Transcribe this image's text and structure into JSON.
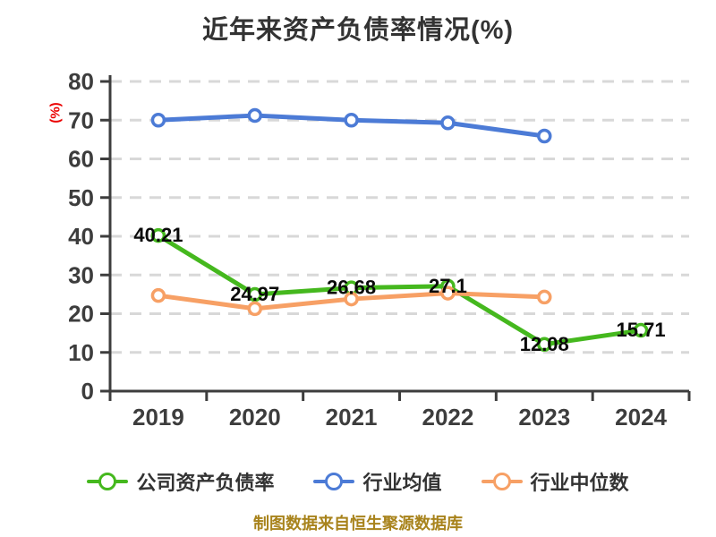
{
  "header": {
    "title": "近年来资产负债率情况(%)"
  },
  "y_axis": {
    "label": "(%)",
    "label_color": "#EA0000"
  },
  "footer": {
    "source_note": "制图数据来自恒生聚源数据库",
    "color": "#A8831C"
  },
  "chart_data": {
    "type": "line",
    "title": "近年来资产负债率情况(%)",
    "xlabel": "",
    "ylabel": "(%)",
    "categories": [
      "2019",
      "2020",
      "2021",
      "2022",
      "2023",
      "2024"
    ],
    "ylim": [
      0,
      80
    ],
    "ytick_interval": 10,
    "grid": "horizontal-dashed",
    "legend_position": "bottom",
    "marker": "circle-white-fill",
    "colors": {
      "grid": "#D8D8D8",
      "axis": "#3D3D3D",
      "data_label": "#0A0A0A"
    },
    "series": [
      {
        "name": "公司资产负债率",
        "color": "#45B81E",
        "show_labels": true,
        "values": [
          40.21,
          24.97,
          26.68,
          27.1,
          12.08,
          15.71
        ],
        "labels": [
          "40.21",
          "24.97",
          "26.68",
          "27.1",
          "12.08",
          "15.71"
        ]
      },
      {
        "name": "行业均值",
        "color": "#4C7BD6",
        "show_labels": false,
        "values": [
          70.0,
          71.2,
          70.0,
          69.3,
          65.9,
          null
        ]
      },
      {
        "name": "行业中位数",
        "color": "#F7A065",
        "show_labels": false,
        "values": [
          24.7,
          21.3,
          23.8,
          25.3,
          24.3,
          null
        ]
      }
    ]
  }
}
